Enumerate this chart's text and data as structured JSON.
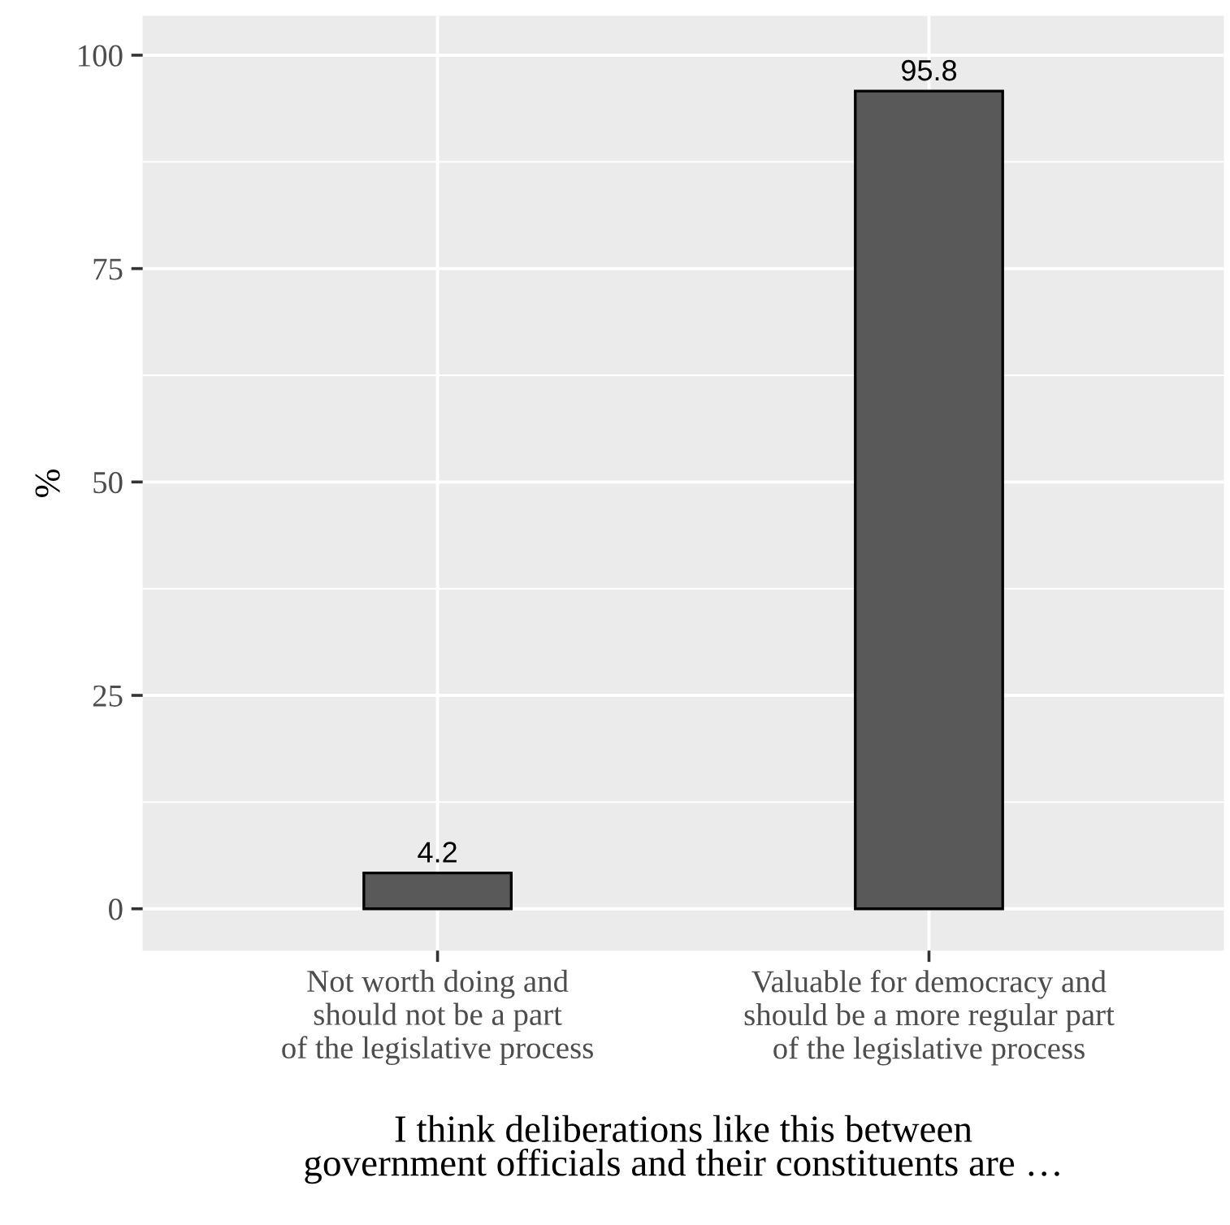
{
  "chart_data": {
    "type": "bar",
    "categories": [
      "Not worth doing and\nshould not be a part\nof the legislative process",
      "Valuable for democracy and\nshould be a more regular part\nof the legislative process"
    ],
    "values": [
      4.2,
      95.8
    ],
    "color": "#595959",
    "xlabel": "I think deliberations like this between\ngovernment officials and their constituents are …",
    "ylabel": "%",
    "ylim": [
      -4.9,
      104.6
    ],
    "yticks": [
      0,
      25,
      50,
      75,
      100
    ],
    "grid": true,
    "data_labels": true
  }
}
